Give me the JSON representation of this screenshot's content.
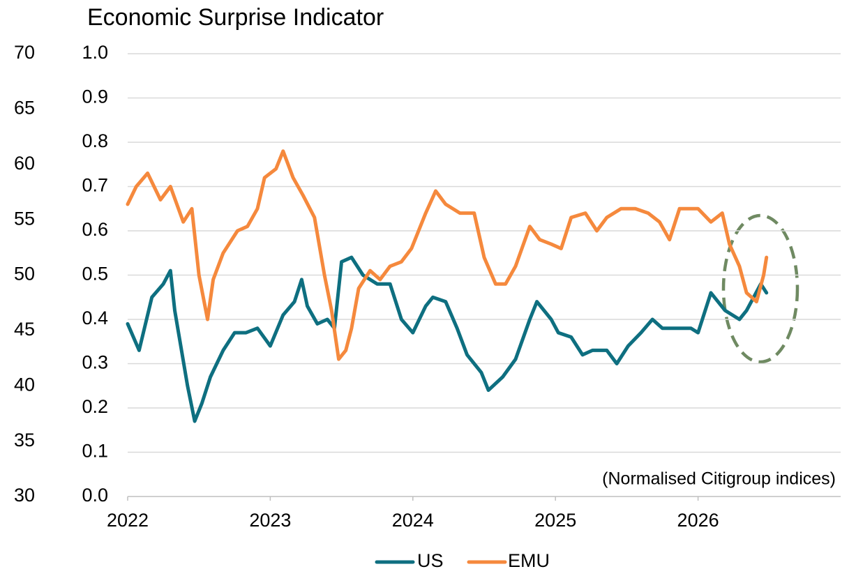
{
  "chart_data": {
    "type": "line",
    "title": "Economic Surprise Indicator",
    "annotation": "(Normalised Citigroup indices)",
    "xlim": [
      2022,
      2027
    ],
    "xticks": [
      2022,
      2023,
      2024,
      2025,
      2026
    ],
    "ylim": [
      0,
      1
    ],
    "yticks": [
      {
        "value": 0,
        "label": "0.0"
      },
      0.1,
      0.2,
      0.3,
      0.4,
      0.5,
      0.6,
      0.7,
      0.8,
      0.9,
      {
        "value": 1,
        "label": "1.0"
      }
    ],
    "y2lim": [
      30,
      70
    ],
    "y2ticks": [
      30,
      35,
      40,
      45,
      50,
      55,
      60,
      65,
      70
    ],
    "grid": true,
    "legend": "bottom",
    "series": [
      {
        "name": "US",
        "color": "#0e6f80",
        "x": [
          2022.0,
          2022.08,
          2022.17,
          2022.25,
          2022.3,
          2022.33,
          2022.42,
          2022.47,
          2022.52,
          2022.58,
          2022.67,
          2022.75,
          2022.83,
          2022.91,
          2023.0,
          2023.09,
          2023.17,
          2023.22,
          2023.26,
          2023.33,
          2023.4,
          2023.45,
          2023.5,
          2023.57,
          2023.65,
          2023.75,
          2023.84,
          2023.92,
          2024.0,
          2024.09,
          2024.14,
          2024.23,
          2024.31,
          2024.38,
          2024.48,
          2024.53,
          2024.63,
          2024.72,
          2024.82,
          2024.87,
          2024.97,
          2025.02,
          2025.11,
          2025.19,
          2025.26,
          2025.36,
          2025.43,
          2025.51,
          2025.6,
          2025.68,
          2025.75,
          2025.85,
          2025.95,
          2026.0,
          2026.09,
          2026.19,
          2026.29,
          2026.34,
          2026.39,
          2026.44,
          2026.48
        ],
        "values": [
          0.39,
          0.33,
          0.45,
          0.48,
          0.51,
          0.42,
          0.25,
          0.17,
          0.21,
          0.27,
          0.33,
          0.37,
          0.37,
          0.38,
          0.34,
          0.41,
          0.44,
          0.49,
          0.43,
          0.39,
          0.4,
          0.38,
          0.53,
          0.54,
          0.5,
          0.48,
          0.48,
          0.4,
          0.37,
          0.43,
          0.45,
          0.44,
          0.38,
          0.32,
          0.28,
          0.24,
          0.27,
          0.31,
          0.4,
          0.44,
          0.4,
          0.37,
          0.36,
          0.32,
          0.33,
          0.33,
          0.3,
          0.34,
          0.37,
          0.4,
          0.38,
          0.38,
          0.38,
          0.37,
          0.46,
          0.42,
          0.4,
          0.42,
          0.45,
          0.48,
          0.46
        ]
      },
      {
        "name": "EMU",
        "color": "#f5893d",
        "x": [
          2022.0,
          2022.06,
          2022.14,
          2022.23,
          2022.3,
          2022.39,
          2022.45,
          2022.5,
          2022.56,
          2022.6,
          2022.67,
          2022.77,
          2022.84,
          2022.91,
          2022.96,
          2023.04,
          2023.09,
          2023.16,
          2023.23,
          2023.31,
          2023.38,
          2023.43,
          2023.48,
          2023.53,
          2023.57,
          2023.62,
          2023.7,
          2023.77,
          2023.84,
          2023.92,
          2023.99,
          2024.09,
          2024.16,
          2024.23,
          2024.33,
          2024.43,
          2024.5,
          2024.58,
          2024.65,
          2024.72,
          2024.82,
          2024.89,
          2024.97,
          2025.04,
          2025.11,
          2025.21,
          2025.29,
          2025.36,
          2025.46,
          2025.56,
          2025.65,
          2025.73,
          2025.8,
          2025.87,
          2026.0,
          2026.09,
          2026.17,
          2026.22,
          2026.29,
          2026.34,
          2026.41,
          2026.46,
          2026.48
        ],
        "values": [
          0.66,
          0.7,
          0.73,
          0.67,
          0.7,
          0.62,
          0.65,
          0.5,
          0.4,
          0.49,
          0.55,
          0.6,
          0.61,
          0.65,
          0.72,
          0.74,
          0.78,
          0.72,
          0.68,
          0.63,
          0.5,
          0.42,
          0.31,
          0.33,
          0.38,
          0.47,
          0.51,
          0.49,
          0.52,
          0.53,
          0.56,
          0.64,
          0.69,
          0.66,
          0.64,
          0.64,
          0.54,
          0.48,
          0.48,
          0.52,
          0.61,
          0.58,
          0.57,
          0.56,
          0.63,
          0.64,
          0.6,
          0.63,
          0.65,
          0.65,
          0.64,
          0.62,
          0.58,
          0.65,
          0.65,
          0.62,
          0.64,
          0.57,
          0.52,
          0.46,
          0.44,
          0.5,
          0.54
        ]
      }
    ]
  }
}
